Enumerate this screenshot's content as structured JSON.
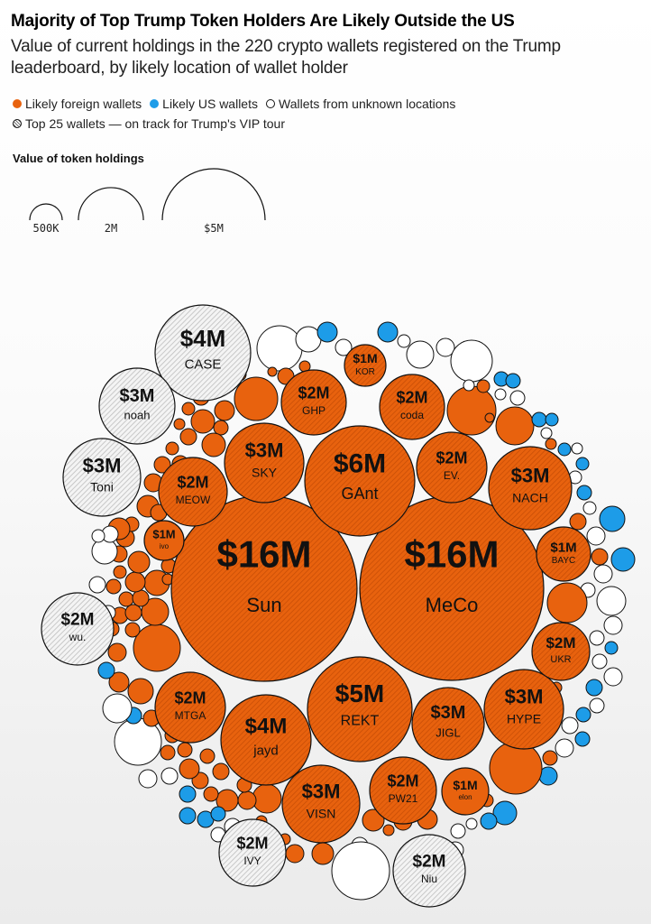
{
  "title": "Majority of Top Trump Token Holders Are Likely Outside the US",
  "subtitle": "Value of current holdings in the 220 crypto wallets registered on the Trump leaderboard, by likely location of wallet holder",
  "legend": {
    "foreign": "Likely foreign wallets",
    "us": "Likely US wallets",
    "unknown": "Wallets from unknown locations",
    "top25": "Top 25 wallets — on track for Trump's VIP tour"
  },
  "size_legend": {
    "title": "Value of token holdings",
    "items": [
      {
        "label": "500K",
        "value": 500000
      },
      {
        "label": "2M",
        "value": 2000000
      },
      {
        "label": "$5M",
        "value": 5000000
      }
    ]
  },
  "colors": {
    "foreign": "#e8620e",
    "us": "#1d9ce8",
    "unknown": "#ffffff",
    "stroke": "#111111",
    "hatch": "#bdbdbd"
  },
  "chart_data": {
    "type": "bubble",
    "wallet_count": 220,
    "labeled_wallets": [
      {
        "name": "Sun",
        "value_label": "$16M",
        "value_musd": 16,
        "location": "foreign",
        "top25": true
      },
      {
        "name": "MeCo",
        "value_label": "$16M",
        "value_musd": 16,
        "location": "foreign",
        "top25": true
      },
      {
        "name": "GAnt",
        "value_label": "$6M",
        "value_musd": 6,
        "location": "foreign",
        "top25": true
      },
      {
        "name": "REKT",
        "value_label": "$5M",
        "value_musd": 5,
        "location": "foreign",
        "top25": true
      },
      {
        "name": "CASE",
        "value_label": "$4M",
        "value_musd": 4,
        "location": "unknown",
        "top25": true
      },
      {
        "name": "jayd",
        "value_label": "$4M",
        "value_musd": 4,
        "location": "foreign",
        "top25": true
      },
      {
        "name": "SKY",
        "value_label": "$3M",
        "value_musd": 3,
        "location": "foreign",
        "top25": true
      },
      {
        "name": "NACH",
        "value_label": "$3M",
        "value_musd": 3,
        "location": "foreign",
        "top25": true
      },
      {
        "name": "HYPE",
        "value_label": "$3M",
        "value_musd": 3,
        "location": "foreign",
        "top25": true
      },
      {
        "name": "VISN",
        "value_label": "$3M",
        "value_musd": 3,
        "location": "foreign",
        "top25": true
      },
      {
        "name": "JIGL",
        "value_label": "$3M",
        "value_musd": 3,
        "location": "foreign",
        "top25": true
      },
      {
        "name": "noah",
        "value_label": "$3M",
        "value_musd": 3,
        "location": "unknown",
        "top25": true
      },
      {
        "name": "Toni",
        "value_label": "$3M",
        "value_musd": 3,
        "location": "unknown",
        "top25": true
      },
      {
        "name": "GHP",
        "value_label": "$2M",
        "value_musd": 2,
        "location": "foreign",
        "top25": true
      },
      {
        "name": "coda",
        "value_label": "$2M",
        "value_musd": 2,
        "location": "foreign",
        "top25": true
      },
      {
        "name": "EV.",
        "value_label": "$2M",
        "value_musd": 2,
        "location": "foreign",
        "top25": true
      },
      {
        "name": "MEOW",
        "value_label": "$2M",
        "value_musd": 2,
        "location": "foreign",
        "top25": true
      },
      {
        "name": "MTGA",
        "value_label": "$2M",
        "value_musd": 2,
        "location": "foreign",
        "top25": true
      },
      {
        "name": "UKR",
        "value_label": "$2M",
        "value_musd": 2,
        "location": "foreign",
        "top25": true
      },
      {
        "name": "PW21",
        "value_label": "$2M",
        "value_musd": 2,
        "location": "foreign",
        "top25": true
      },
      {
        "name": "wu.",
        "value_label": "$2M",
        "value_musd": 2,
        "location": "unknown",
        "top25": true
      },
      {
        "name": "IVY",
        "value_label": "$2M",
        "value_musd": 2,
        "location": "unknown",
        "top25": true
      },
      {
        "name": "Niu",
        "value_label": "$2M",
        "value_musd": 2,
        "location": "unknown",
        "top25": true
      },
      {
        "name": "KOR",
        "value_label": "$1M",
        "value_musd": 1,
        "location": "foreign",
        "top25": true
      },
      {
        "name": "BAYC",
        "value_label": "$1M",
        "value_musd": 1,
        "location": "foreign",
        "top25": true
      },
      {
        "name": "ivo",
        "value_label": "$1M",
        "value_musd": 1,
        "location": "foreign",
        "top25": false
      },
      {
        "name": "elon",
        "value_label": "$1M",
        "value_musd": 1,
        "location": "foreign",
        "top25": false
      }
    ]
  }
}
